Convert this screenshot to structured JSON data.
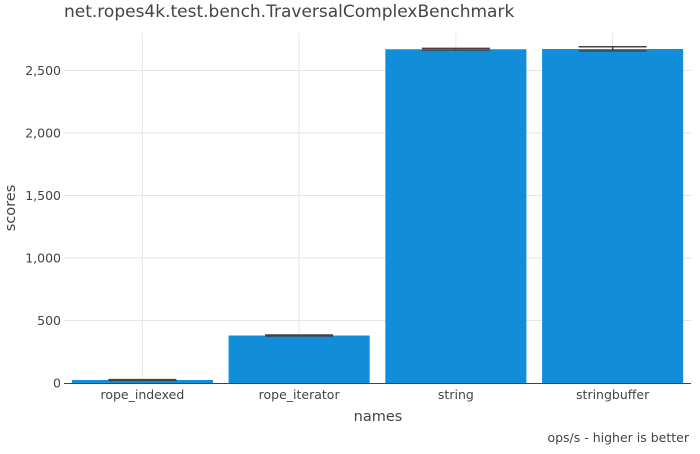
{
  "chart_data": {
    "type": "bar",
    "title": "net.ropes4k.test.bench.TraversalComplexBenchmark",
    "xlabel": "names",
    "ylabel": "scores",
    "categories": [
      "rope_indexed",
      "rope_iterator",
      "string",
      "stringbuffer"
    ],
    "values": [
      24,
      380,
      2670,
      2672
    ],
    "errors": [
      {
        "low": 21,
        "high": 27
      },
      {
        "low": 376,
        "high": 384
      },
      {
        "low": 2663,
        "high": 2677
      },
      {
        "low": 2657,
        "high": 2690
      }
    ],
    "ylim": [
      0,
      2800
    ],
    "yticks": [
      0,
      500,
      1000,
      1500,
      2000,
      2500
    ],
    "ytick_labels": [
      "0",
      "500",
      "1,000",
      "1,500",
      "2,000",
      "2,500"
    ],
    "bar_color": "#118dda",
    "grid": true,
    "legend": "none",
    "note": "ops/s - higher is better"
  }
}
